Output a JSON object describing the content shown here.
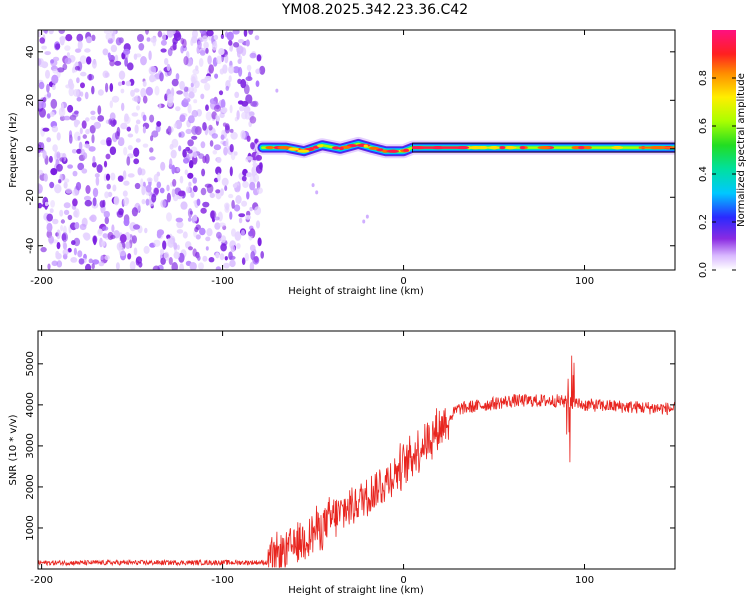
{
  "title": "YM08.2025.342.23.36.C42",
  "chart_data": [
    {
      "type": "heatmap",
      "title": "YM08.2025.342.23.36.C42",
      "xlabel": "Height of straight line (km)",
      "ylabel": "Frequency (Hz)",
      "xlim": [
        -202,
        150
      ],
      "ylim": [
        -50,
        49
      ],
      "xticks": [
        -200,
        -100,
        0,
        100
      ],
      "yticks": [
        -40,
        -20,
        0,
        20,
        40
      ],
      "colorbar": {
        "label": "Normalized spectral amplitude",
        "range": [
          0,
          1
        ],
        "ticks": [
          0.0,
          0.2,
          0.4,
          0.6,
          0.8
        ]
      },
      "regions": [
        {
          "name": "noise",
          "x_range": [
            -202,
            -78
          ],
          "freq_range": [
            -50,
            49
          ],
          "amplitude_range": [
            0.0,
            0.15
          ]
        },
        {
          "name": "signal band",
          "x_range": [
            -78,
            150
          ],
          "freq_center": 0,
          "amplitude_peak": 1.0
        }
      ],
      "band_center_hz": [
        {
          "x": -78,
          "y": 0.5
        },
        {
          "x": -65,
          "y": 0.5
        },
        {
          "x": -55,
          "y": -1
        },
        {
          "x": -45,
          "y": 1.5
        },
        {
          "x": -35,
          "y": 0
        },
        {
          "x": -25,
          "y": 2
        },
        {
          "x": -18,
          "y": 0.5
        },
        {
          "x": -10,
          "y": -1
        },
        {
          "x": 0,
          "y": -1
        },
        {
          "x": 5,
          "y": 0.5
        },
        {
          "x": 150,
          "y": 0.5
        }
      ]
    },
    {
      "type": "line",
      "xlabel": "Height of straight line (km)",
      "ylabel": "SNR (10 * v/v)",
      "xlim": [
        -202,
        150
      ],
      "ylim": [
        0,
        5800
      ],
      "xticks": [
        -200,
        -100,
        0,
        100
      ],
      "yticks": [
        1000,
        2000,
        3000,
        4000,
        5000
      ],
      "series": [
        {
          "name": "SNR",
          "color": "#e8251f",
          "envelope": [
            {
              "x": -202,
              "y": 150
            },
            {
              "x": -75,
              "y": 160
            },
            {
              "x": -65,
              "y": 450
            },
            {
              "x": -50,
              "y": 900
            },
            {
              "x": -30,
              "y": 1500
            },
            {
              "x": -10,
              "y": 2100
            },
            {
              "x": 10,
              "y": 3000
            },
            {
              "x": 30,
              "y": 3900
            },
            {
              "x": 60,
              "y": 4100
            },
            {
              "x": 85,
              "y": 4100
            },
            {
              "x": 100,
              "y": 4000
            },
            {
              "x": 150,
              "y": 3900
            }
          ],
          "spikes": [
            {
              "x": 91,
              "y": 5800
            },
            {
              "x": 92,
              "y": 2600
            },
            {
              "x": 93,
              "y": 5200
            }
          ]
        }
      ]
    }
  ]
}
